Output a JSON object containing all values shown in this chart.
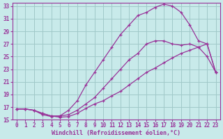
{
  "xlabel": "Windchill (Refroidissement éolien,°C)",
  "bg_color": "#c8eaea",
  "grid_color": "#a0c8c8",
  "line_color": "#993399",
  "xlim": [
    -0.5,
    23.5
  ],
  "ylim": [
    15,
    33.5
  ],
  "xticks": [
    0,
    1,
    2,
    3,
    4,
    5,
    6,
    7,
    8,
    9,
    10,
    11,
    12,
    13,
    14,
    15,
    16,
    17,
    18,
    19,
    20,
    21,
    22,
    23
  ],
  "yticks": [
    15,
    17,
    19,
    21,
    23,
    25,
    27,
    29,
    31,
    33
  ],
  "curve_bell_x": [
    0,
    1,
    2,
    3,
    4,
    5,
    6,
    7,
    8,
    9,
    10,
    11,
    12,
    13,
    14,
    15,
    16,
    17
  ],
  "curve_bell_y": [
    16.7,
    16.7,
    16.5,
    15.8,
    15.5,
    15.6,
    16.5,
    18.0,
    20.5,
    22.5,
    24.5,
    26.5,
    28.5,
    30.0,
    31.5,
    32.0,
    32.8,
    33.3
  ],
  "curve_bell_x2": [
    17,
    18,
    19,
    20,
    21,
    22,
    23
  ],
  "curve_bell_y2": [
    33.3,
    33.0,
    32.0,
    30.0,
    27.5,
    27.0,
    22.5
  ],
  "curve_mid_x": [
    0,
    1,
    2,
    3,
    4,
    5,
    6,
    7,
    8,
    9,
    10,
    11,
    12,
    13,
    14,
    15,
    16,
    17,
    18,
    19,
    20,
    21,
    22,
    23
  ],
  "curve_mid_y": [
    16.7,
    16.7,
    16.5,
    16.0,
    15.6,
    15.6,
    15.8,
    16.5,
    17.5,
    18.5,
    20.0,
    21.5,
    23.0,
    24.5,
    25.5,
    27.0,
    27.5,
    27.5,
    27.0,
    26.8,
    27.0,
    26.5,
    25.0,
    22.5
  ],
  "curve_bot_x": [
    0,
    1,
    2,
    3,
    4,
    5,
    6,
    7,
    8,
    9,
    10,
    11,
    12,
    13,
    14,
    15,
    16,
    17,
    18,
    19,
    20,
    21,
    22,
    23
  ],
  "curve_bot_y": [
    16.7,
    16.7,
    16.5,
    16.0,
    15.6,
    15.4,
    15.5,
    16.0,
    16.8,
    17.5,
    18.0,
    18.8,
    19.5,
    20.5,
    21.5,
    22.5,
    23.2,
    24.0,
    24.8,
    25.5,
    26.0,
    26.5,
    27.0,
    22.5
  ],
  "tick_fontsize": 5.5,
  "xlabel_fontsize": 6.0
}
